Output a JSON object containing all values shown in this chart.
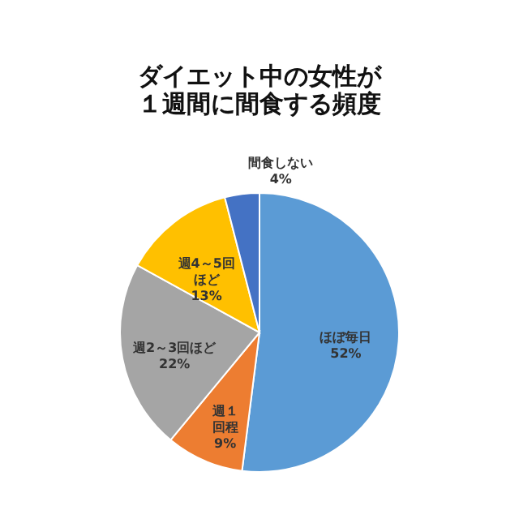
{
  "chart_data": {
    "type": "pie",
    "title": "ダイエット中の女性が１週間に間食する頻度",
    "categories": [
      "ほぼ毎日",
      "週１回程",
      "週2～3回ほど",
      "週4～5回ほど",
      "間食しない"
    ],
    "values": [
      52,
      9,
      22,
      13,
      4
    ],
    "value_labels": [
      "52%",
      "9%",
      "22%",
      "13%",
      "4%"
    ],
    "colors": [
      "#5b9bd5",
      "#ed7d31",
      "#a5a5a5",
      "#ffc000",
      "#4472c4"
    ],
    "legend": false
  }
}
